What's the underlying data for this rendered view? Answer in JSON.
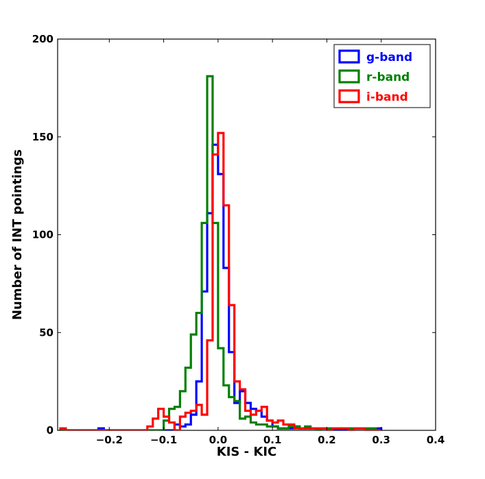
{
  "chart_data": {
    "type": "line",
    "style": "step-histogram",
    "xlabel": "KIS - KIC",
    "ylabel": "Number of INT pointings",
    "xlim": [
      -0.295,
      0.4
    ],
    "ylim": [
      0,
      200
    ],
    "x_ticks": [
      -0.2,
      -0.1,
      0.0,
      0.1,
      0.2,
      0.3,
      0.4
    ],
    "x_tick_labels": [
      "−0.2",
      "−0.1",
      "0.0",
      "0.1",
      "0.2",
      "0.3",
      "0.4"
    ],
    "y_ticks": [
      0,
      50,
      100,
      150,
      200
    ],
    "y_tick_labels": [
      "0",
      "50",
      "100",
      "150",
      "200"
    ],
    "grid": false,
    "legend_position": "top-right",
    "bin_width": 0.01,
    "series": [
      {
        "name": "g-band",
        "color": "#0000ff",
        "x_start": -0.29,
        "values": [
          0,
          0,
          0,
          0,
          0,
          0,
          0,
          1,
          0,
          0,
          0,
          0,
          0,
          0,
          0,
          0,
          0,
          0,
          0,
          0,
          0,
          3,
          2,
          3,
          8,
          25,
          71,
          111,
          146,
          131,
          83,
          40,
          14,
          20,
          14,
          11,
          10,
          7,
          5,
          2,
          1,
          1,
          1,
          2,
          1,
          1,
          1,
          0,
          1,
          0,
          0,
          0,
          0,
          0,
          1,
          1,
          1,
          1,
          1
        ]
      },
      {
        "name": "r-band",
        "color": "#008000",
        "x_start": -0.29,
        "values": [
          0,
          0,
          0,
          0,
          0,
          0,
          0,
          0,
          0,
          0,
          0,
          0,
          0,
          0,
          0,
          0,
          0,
          0,
          0,
          5,
          11,
          12,
          20,
          32,
          49,
          60,
          106,
          181,
          106,
          42,
          23,
          17,
          15,
          6,
          7,
          4,
          3,
          3,
          2,
          2,
          1,
          1,
          2,
          2,
          1,
          2,
          1,
          0,
          1,
          1,
          1,
          1,
          1,
          1,
          1,
          1,
          1,
          1,
          0
        ]
      },
      {
        "name": "i-band",
        "color": "#ff0000",
        "x_start": -0.29,
        "values": [
          1,
          0,
          0,
          0,
          0,
          0,
          0,
          0,
          0,
          0,
          0,
          0,
          0,
          0,
          0,
          0,
          2,
          6,
          11,
          7,
          4,
          0,
          7,
          9,
          10,
          13,
          8,
          46,
          141,
          152,
          115,
          64,
          25,
          21,
          10,
          8,
          10,
          12,
          5,
          4,
          5,
          3,
          3,
          1,
          1,
          1,
          1,
          1,
          1,
          0,
          1,
          1,
          1,
          0,
          1,
          1,
          0,
          0,
          0
        ]
      }
    ]
  }
}
